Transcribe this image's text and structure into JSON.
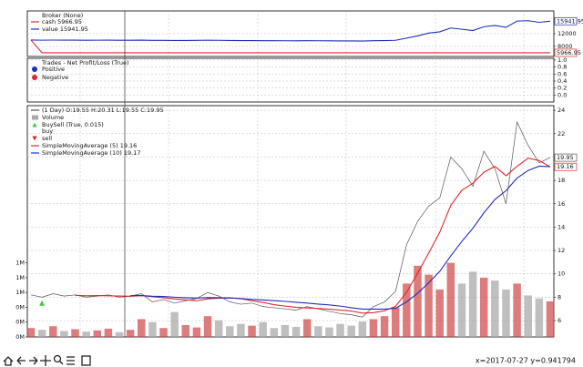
{
  "chart_data": [
    {
      "type": "line",
      "title": "Broker (None)",
      "grid": true,
      "ylim": [
        4800,
        19200
      ],
      "yticks": [
        8000,
        12000
      ],
      "series": [
        {
          "name": "cash 5966.95",
          "color": "#e0282e",
          "last_label": "5966.95",
          "values": [
            10000,
            5966.95,
            5966.95,
            5966.95,
            5966.95,
            5966.95,
            5966.95,
            5966.95,
            5966.95,
            5966.95,
            5966.95,
            5966.95,
            5966.95,
            5966.95,
            5966.95,
            5966.95,
            5966.95,
            5966.95,
            5966.95,
            5966.95,
            5966.95,
            5966.95,
            5966.95,
            5966.95,
            5966.95,
            5966.95,
            5966.95,
            5966.95,
            5966.95,
            5966.95,
            5966.95,
            5966.95,
            5966.95,
            5966.95,
            5966.95,
            5966.95,
            5966.95,
            5966.95,
            5966.95,
            5966.95,
            5966.95,
            5966.95,
            5966.95,
            5966.95,
            5966.95,
            5966.95,
            5966.95,
            5966.95
          ]
        },
        {
          "name": "value 15941.95",
          "color": "#1f2fb8",
          "last_label": "15941.95",
          "values": [
            10000,
            9950,
            9980,
            9960,
            9970,
            9940,
            9950,
            9960,
            9930,
            9940,
            9960,
            9880,
            9900,
            9850,
            9870,
            9890,
            9950,
            9910,
            9850,
            9820,
            9830,
            9790,
            9780,
            9770,
            9760,
            9790,
            9770,
            9740,
            9720,
            9710,
            9690,
            9780,
            9820,
            9910,
            10600,
            11300,
            12200,
            12600,
            13800,
            13400,
            13000,
            14200,
            14600,
            14000,
            16000,
            16100,
            15600,
            15941.95
          ]
        }
      ]
    },
    {
      "type": "scatter",
      "title": "Trades - Net Profit/Loss (True)",
      "grid": true,
      "ylim": [
        -0.2,
        1.05
      ],
      "yticks": [
        {
          "value": 0,
          "label": "0.0"
        },
        {
          "value": 0.2,
          "label": "0.2"
        },
        {
          "value": 0.4,
          "label": "0.4"
        },
        {
          "value": 0.6,
          "label": "0.6"
        },
        {
          "value": 0.8,
          "label": "0.8"
        },
        {
          "value": 1,
          "label": "1.0"
        }
      ],
      "series": [
        {
          "name": "Positive",
          "color": "#1f2fb8",
          "values": []
        },
        {
          "name": "Negative",
          "color": "#e0282e",
          "values": []
        }
      ]
    },
    {
      "type": "line",
      "grid": true,
      "categories": [
        null,
        null,
        null,
        null,
        null,
        null,
        null,
        null,
        null,
        null,
        null,
        null,
        null,
        null,
        null,
        null,
        null,
        null,
        null,
        null,
        null,
        null,
        null,
        null,
        null,
        null,
        null,
        null,
        null,
        null,
        null,
        null,
        null,
        null,
        null,
        null,
        null,
        null,
        null,
        null,
        null,
        null,
        null,
        null,
        null,
        null,
        null,
        null
      ],
      "ylim": [
        4.6,
        24.4
      ],
      "yticks": [
        6,
        8,
        10,
        12,
        14,
        16,
        18,
        20,
        22,
        24
      ],
      "y2lim": [
        0,
        3900000
      ],
      "y2ticks": [
        {
          "value": 0,
          "label": "0M"
        },
        {
          "value": 250000,
          "label": "0M"
        },
        {
          "value": 500000,
          "label": "0M"
        },
        {
          "value": 750000,
          "label": "1M"
        },
        {
          "value": 1000000,
          "label": "1M"
        },
        {
          "value": 1250000,
          "label": "1M"
        }
      ],
      "markers_title": "BuySell (True, 0.015)",
      "series": [
        {
          "name": "(1 Day) O:19.55 H:20.31 L:19.55 C:19.95",
          "color": "#555555",
          "style": "line",
          "last_label": "19.95",
          "values": [
            8.2,
            8.0,
            8.3,
            8.1,
            8.2,
            8.0,
            8.1,
            8.2,
            8.0,
            8.1,
            8.3,
            7.6,
            7.8,
            7.5,
            7.7,
            7.9,
            8.4,
            8.1,
            7.6,
            7.4,
            7.5,
            7.2,
            7.1,
            7.0,
            6.9,
            7.2,
            7.0,
            6.8,
            6.6,
            6.5,
            6.3,
            7.2,
            7.6,
            8.5,
            12.5,
            14.5,
            15.8,
            16.5,
            20.0,
            19.0,
            17.5,
            20.5,
            19.0,
            16.0,
            23.0,
            21.0,
            19.5,
            19.95
          ]
        },
        {
          "name": "Volume",
          "color": "#d05050",
          "down_color": "#aaaaaa",
          "style": "bar",
          "axis": "y2",
          "values": [
            150000,
            120000,
            180000,
            100000,
            130000,
            90000,
            110000,
            140000,
            80000,
            120000,
            300000,
            250000,
            150000,
            420000,
            200000,
            160000,
            350000,
            280000,
            180000,
            220000,
            190000,
            250000,
            150000,
            200000,
            170000,
            300000,
            180000,
            160000,
            220000,
            190000,
            260000,
            300000,
            350000,
            500000,
            900000,
            1200000,
            1050000,
            800000,
            1250000,
            900000,
            1100000,
            1000000,
            950000,
            800000,
            900000,
            700000,
            650000,
            600000
          ]
        },
        {
          "name": "buy",
          "color": "#3ccc3c",
          "style": "triangle-up",
          "values": [
            null,
            7.5,
            null,
            null,
            null,
            null,
            null,
            null,
            null,
            null,
            null,
            null,
            null,
            null,
            null,
            null,
            null,
            null,
            null,
            null,
            null,
            null,
            null,
            null,
            null,
            null,
            null,
            null,
            null,
            null,
            null,
            null,
            null,
            null,
            null,
            null,
            null,
            null,
            null,
            null,
            null,
            null,
            null,
            null,
            null,
            null,
            null,
            null
          ]
        },
        {
          "name": "sell",
          "color": "#d42020",
          "style": "triangle-down",
          "values": [
            null,
            null,
            null,
            null,
            null,
            null,
            null,
            null,
            null,
            null,
            null,
            null,
            null,
            null,
            null,
            null,
            null,
            null,
            null,
            null,
            null,
            null,
            null,
            null,
            null,
            null,
            null,
            null,
            null,
            null,
            null,
            null,
            null,
            null,
            null,
            null,
            null,
            null,
            null,
            null,
            null,
            null,
            null,
            null,
            null,
            null,
            null,
            null
          ]
        },
        {
          "name": "SimpleMovingAverage (5) 19.16",
          "color": "#e0282e",
          "style": "line",
          "last_label": "19.16",
          "values": [
            null,
            null,
            null,
            null,
            8.16,
            8.12,
            8.14,
            8.12,
            8.1,
            8.08,
            8.14,
            8.04,
            7.96,
            7.86,
            7.78,
            7.7,
            7.86,
            7.92,
            7.94,
            7.88,
            7.7,
            7.56,
            7.36,
            7.24,
            7.14,
            7.08,
            7.04,
            6.98,
            6.9,
            6.82,
            6.64,
            6.68,
            6.84,
            7.22,
            8.42,
            10.06,
            11.78,
            13.56,
            15.86,
            17.16,
            17.76,
            18.7,
            19.2,
            18.4,
            19.2,
            19.9,
            19.7,
            19.16
          ]
        },
        {
          "name": "SimpleMovingAverage (10) 19.17",
          "color": "#1f2fb8",
          "style": "line",
          "values": [
            null,
            null,
            null,
            null,
            null,
            null,
            null,
            null,
            null,
            8.13,
            8.14,
            8.08,
            8.06,
            8.0,
            7.96,
            7.93,
            7.97,
            7.96,
            7.94,
            7.89,
            7.81,
            7.77,
            7.7,
            7.65,
            7.57,
            7.5,
            7.41,
            7.34,
            7.24,
            7.1,
            6.98,
            6.98,
            6.98,
            7.05,
            7.61,
            8.34,
            9.24,
            10.21,
            11.53,
            12.78,
            13.9,
            15.23,
            16.37,
            17.12,
            18.2,
            18.85,
            19.22,
            19.17
          ]
        }
      ]
    }
  ],
  "status": "x=2017-07-27 y=0.941794"
}
